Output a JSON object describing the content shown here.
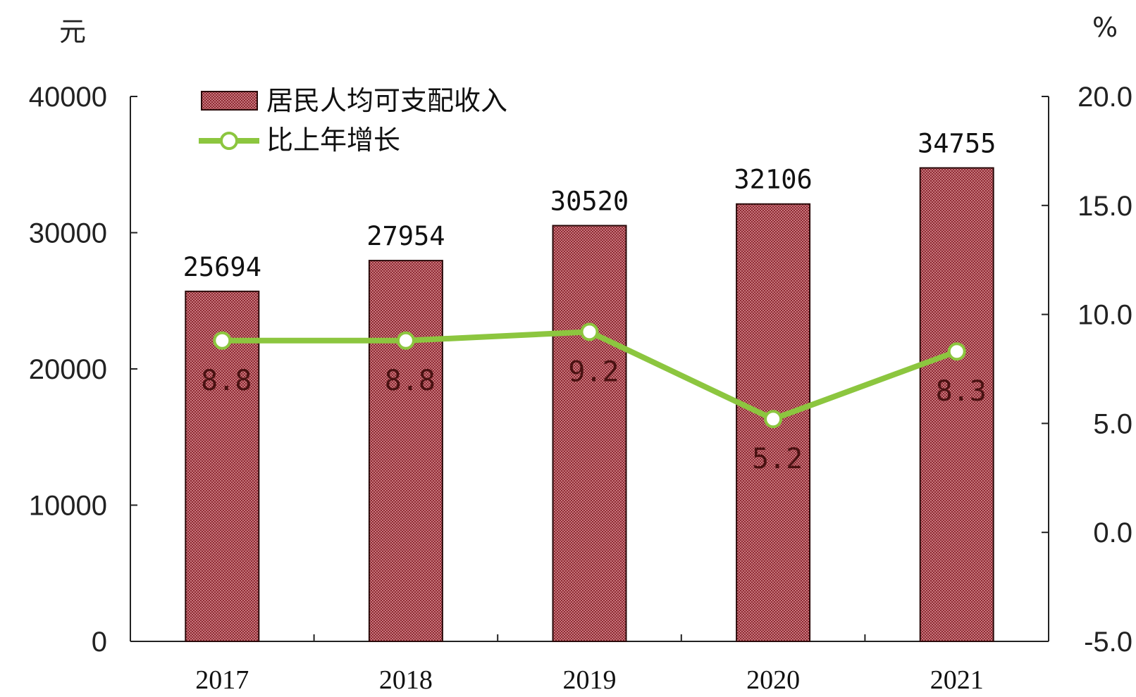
{
  "chart_data": {
    "type": "bar+line",
    "categories": [
      "2017",
      "2018",
      "2019",
      "2020",
      "2021"
    ],
    "series": [
      {
        "name": "居民人均可支配收入",
        "type": "bar",
        "axis": "left",
        "values": [
          25694,
          27954,
          30520,
          32106,
          34755
        ],
        "labels": [
          "25694",
          "27954",
          "30520",
          "32106",
          "34755"
        ]
      },
      {
        "name": "比上年增长",
        "type": "line",
        "axis": "right",
        "values": [
          8.8,
          8.8,
          9.2,
          5.2,
          8.3
        ],
        "labels": [
          "8.8",
          "8.8",
          "9.2",
          "5.2",
          "8.3"
        ]
      }
    ],
    "left_axis": {
      "unit": "元",
      "ylim": [
        0,
        40000
      ],
      "ticks": [
        "0",
        "10000",
        "20000",
        "30000",
        "40000"
      ]
    },
    "right_axis": {
      "unit": "%",
      "ylim": [
        -5.0,
        20.0
      ],
      "ticks": [
        "-5.0",
        "0.0",
        "5.0",
        "10.0",
        "15.0",
        "20.0"
      ]
    },
    "legend_position": "top-left",
    "grid": false,
    "colors": {
      "bar_fill": "#b24a52",
      "bar_stroke": "#2a0a0a",
      "line": "#8cc63f",
      "marker_fill": "#ffffff",
      "axis": "#222222"
    }
  }
}
